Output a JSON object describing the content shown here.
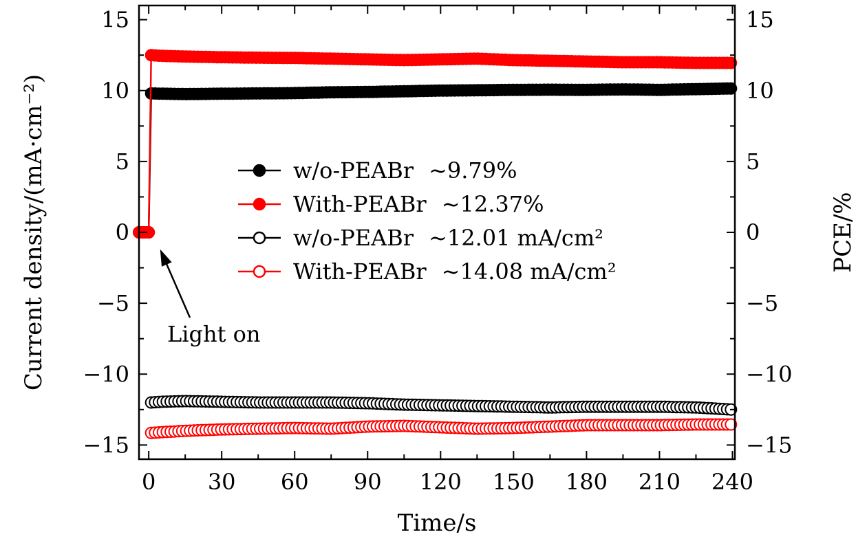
{
  "chart_data": {
    "type": "scatter",
    "title": "",
    "xlabel": "Time/s",
    "ylabel_left": "Current density/(mA·cm⁻²)",
    "ylabel_right": "PCE/%",
    "xlim": [
      -4,
      241
    ],
    "ylim": [
      -16,
      16
    ],
    "x_ticks": [
      0,
      30,
      60,
      90,
      120,
      150,
      180,
      210,
      240
    ],
    "x_tick_labels": [
      "0",
      "30",
      "60",
      "90",
      "120",
      "150",
      "180",
      "210",
      "240"
    ],
    "y_ticks": [
      15,
      10,
      5,
      0,
      -5,
      -10,
      -15
    ],
    "y_tick_labels_left": [
      "15",
      "10",
      "5",
      "0",
      "−5",
      "−10",
      "−15"
    ],
    "y_tick_labels_right": [
      "15",
      "10",
      "5",
      "0",
      "−5",
      "−10",
      "−15"
    ],
    "grid": false,
    "legend_position": "center-left",
    "annotation": {
      "text": "Light on",
      "points_to": [
        3,
        -1
      ]
    },
    "series": [
      {
        "name": "w/o-PEABr",
        "legend_value": "~9.79%",
        "color": "#000000",
        "marker": "filled-circle",
        "points": [
          [
            -4,
            0
          ],
          [
            -2,
            0
          ],
          [
            0,
            0
          ],
          [
            1,
            9.8
          ],
          [
            5,
            9.78
          ],
          [
            15,
            9.75
          ],
          [
            30,
            9.78
          ],
          [
            45,
            9.8
          ],
          [
            60,
            9.82
          ],
          [
            75,
            9.88
          ],
          [
            90,
            9.9
          ],
          [
            105,
            9.95
          ],
          [
            120,
            10.0
          ],
          [
            135,
            10.02
          ],
          [
            150,
            10.05
          ],
          [
            165,
            10.06
          ],
          [
            180,
            10.05
          ],
          [
            195,
            10.08
          ],
          [
            210,
            10.05
          ],
          [
            225,
            10.1
          ],
          [
            240,
            10.15
          ]
        ]
      },
      {
        "name": "With-PEABr",
        "legend_value": "~12.37%",
        "color": "#ff0000",
        "marker": "filled-circle",
        "points": [
          [
            -4,
            0
          ],
          [
            -2,
            0
          ],
          [
            0,
            0
          ],
          [
            1,
            12.5
          ],
          [
            5,
            12.45
          ],
          [
            15,
            12.4
          ],
          [
            30,
            12.35
          ],
          [
            45,
            12.32
          ],
          [
            60,
            12.3
          ],
          [
            75,
            12.25
          ],
          [
            90,
            12.2
          ],
          [
            105,
            12.15
          ],
          [
            120,
            12.2
          ],
          [
            135,
            12.25
          ],
          [
            150,
            12.15
          ],
          [
            165,
            12.1
          ],
          [
            180,
            12.05
          ],
          [
            195,
            12.0
          ],
          [
            210,
            12.0
          ],
          [
            225,
            11.95
          ],
          [
            240,
            11.95
          ]
        ]
      },
      {
        "name": "w/o-PEABr",
        "legend_value": "~12.01 mA/cm²",
        "color": "#000000",
        "marker": "open-circle",
        "points": [
          [
            1,
            -12.0
          ],
          [
            5,
            -11.95
          ],
          [
            15,
            -11.9
          ],
          [
            30,
            -11.95
          ],
          [
            45,
            -12.0
          ],
          [
            60,
            -12.0
          ],
          [
            75,
            -12.0
          ],
          [
            90,
            -12.05
          ],
          [
            105,
            -12.15
          ],
          [
            120,
            -12.2
          ],
          [
            135,
            -12.25
          ],
          [
            150,
            -12.3
          ],
          [
            165,
            -12.35
          ],
          [
            180,
            -12.3
          ],
          [
            195,
            -12.3
          ],
          [
            210,
            -12.3
          ],
          [
            225,
            -12.35
          ],
          [
            240,
            -12.5
          ]
        ]
      },
      {
        "name": "With-PEABr",
        "legend_value": "~14.08 mA/cm²",
        "color": "#ff0000",
        "marker": "open-circle",
        "points": [
          [
            1,
            -14.15
          ],
          [
            5,
            -14.1
          ],
          [
            15,
            -14.0
          ],
          [
            30,
            -13.9
          ],
          [
            45,
            -13.85
          ],
          [
            60,
            -13.8
          ],
          [
            75,
            -13.85
          ],
          [
            90,
            -13.7
          ],
          [
            105,
            -13.65
          ],
          [
            120,
            -13.75
          ],
          [
            135,
            -13.85
          ],
          [
            150,
            -13.8
          ],
          [
            165,
            -13.7
          ],
          [
            180,
            -13.6
          ],
          [
            195,
            -13.6
          ],
          [
            210,
            -13.6
          ],
          [
            225,
            -13.55
          ],
          [
            240,
            -13.55
          ]
        ]
      }
    ]
  }
}
